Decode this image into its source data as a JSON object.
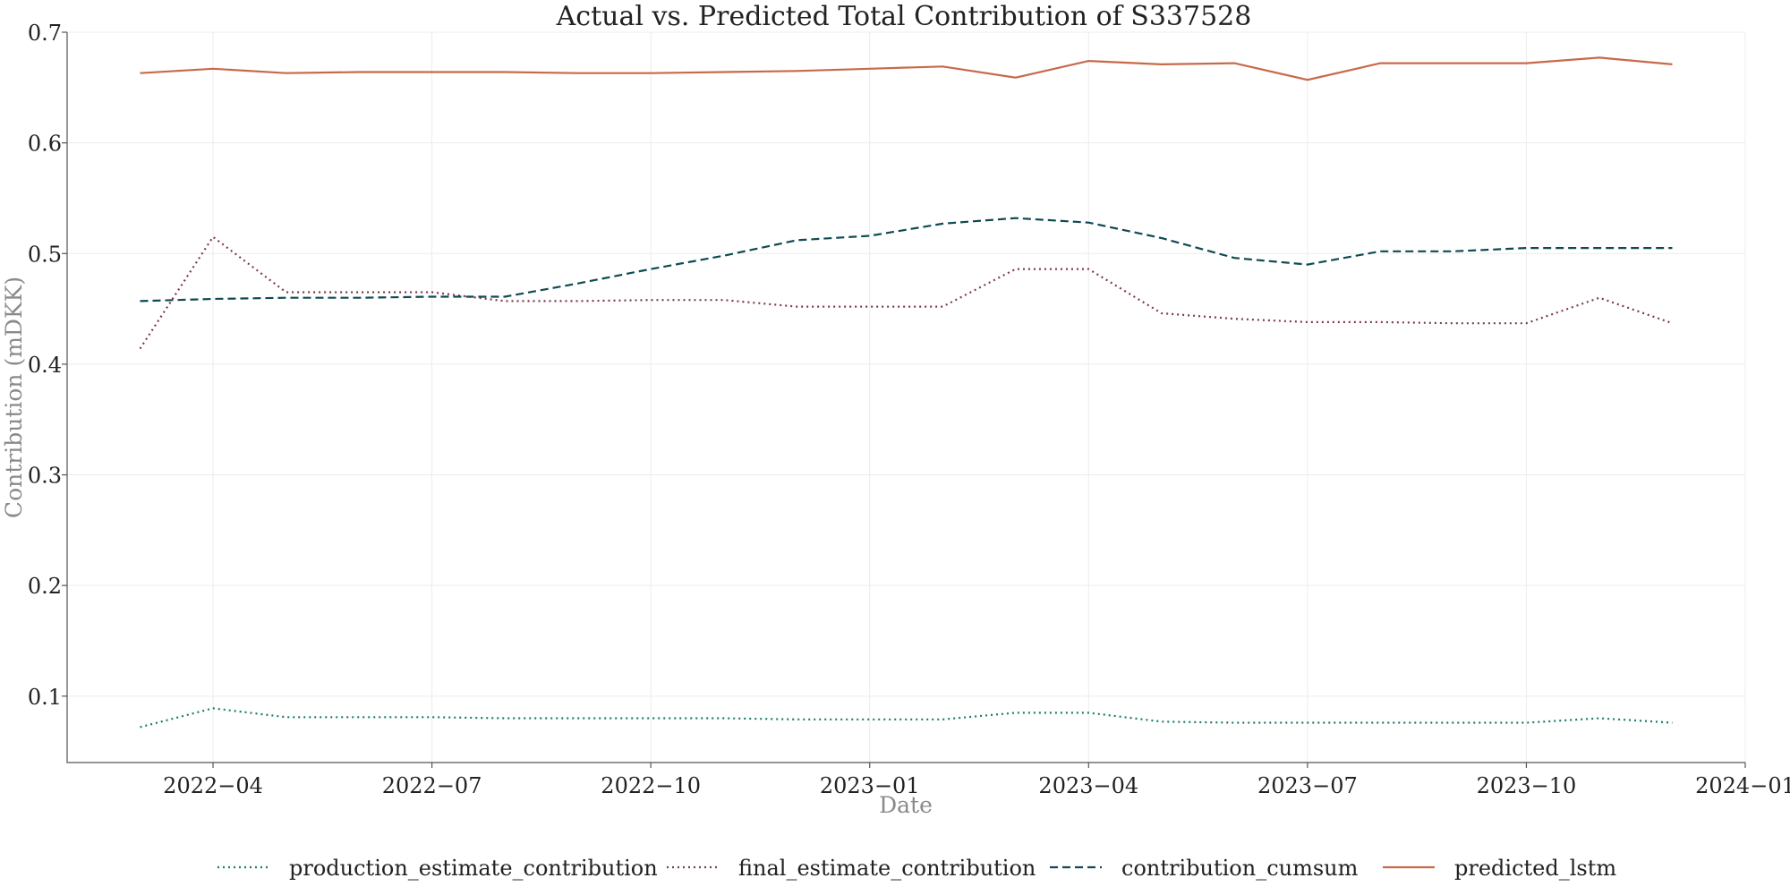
{
  "chart_data": {
    "type": "line",
    "title": "Actual vs. Predicted Total Contribution of S337528",
    "xlabel": "Date",
    "ylabel": "Contribution (mDKK)",
    "x": [
      "2022-03",
      "2022-04",
      "2022-05",
      "2022-06",
      "2022-07",
      "2022-08",
      "2022-09",
      "2022-10",
      "2022-11",
      "2022-12",
      "2023-01",
      "2023-02",
      "2023-03",
      "2023-04",
      "2023-05",
      "2023-06",
      "2023-07",
      "2023-08",
      "2023-09",
      "2023-10",
      "2023-11",
      "2023-12"
    ],
    "x_tick_labels": [
      "2022−04",
      "2022−07",
      "2022−10",
      "2023−01",
      "2023−04",
      "2023−07",
      "2023−10",
      "2024−01"
    ],
    "x_tick_dates": [
      "2022-04",
      "2022-07",
      "2022-10",
      "2023-01",
      "2023-04",
      "2023-07",
      "2023-10",
      "2024-01"
    ],
    "xlim": [
      "2022-02",
      "2024-01"
    ],
    "ylim": [
      0.04,
      0.7
    ],
    "y_ticks": [
      0.1,
      0.2,
      0.3,
      0.4,
      0.5,
      0.6,
      0.7
    ],
    "y_tick_labels": [
      "0.1",
      "0.2",
      "0.3",
      "0.4",
      "0.5",
      "0.6",
      "0.7"
    ],
    "grid": true,
    "legend_position": "bottom-center",
    "series": [
      {
        "name": "production_estimate_contribution",
        "color": "#1a7a6e",
        "dash": "dotted",
        "values": [
          0.072,
          0.089,
          0.081,
          0.081,
          0.081,
          0.08,
          0.08,
          0.08,
          0.08,
          0.079,
          0.079,
          0.079,
          0.085,
          0.085,
          0.077,
          0.076,
          0.076,
          0.076,
          0.076,
          0.076,
          0.08,
          0.076
        ]
      },
      {
        "name": "final_estimate_contribution",
        "color": "#7d3a4a",
        "dash": "dotted",
        "values": [
          0.414,
          0.515,
          0.465,
          0.465,
          0.465,
          0.457,
          0.457,
          0.458,
          0.458,
          0.452,
          0.452,
          0.452,
          0.486,
          0.486,
          0.446,
          0.441,
          0.438,
          0.438,
          0.437,
          0.437,
          0.46,
          0.437
        ]
      },
      {
        "name": "contribution_cumsum",
        "color": "#0e4a52",
        "dash": "dashed",
        "values": [
          0.457,
          0.459,
          0.46,
          0.46,
          0.461,
          0.461,
          0.473,
          0.486,
          0.498,
          0.512,
          0.516,
          0.527,
          0.532,
          0.528,
          0.514,
          0.496,
          0.49,
          0.502,
          0.502,
          0.505,
          0.505,
          0.505
        ]
      },
      {
        "name": "predicted_lstm",
        "color": "#c8694a",
        "dash": "solid",
        "values": [
          0.663,
          0.667,
          0.663,
          0.664,
          0.664,
          0.664,
          0.663,
          0.663,
          0.664,
          0.665,
          0.667,
          0.669,
          0.659,
          0.674,
          0.671,
          0.672,
          0.657,
          0.672,
          0.672,
          0.672,
          0.677,
          0.671
        ]
      }
    ]
  }
}
